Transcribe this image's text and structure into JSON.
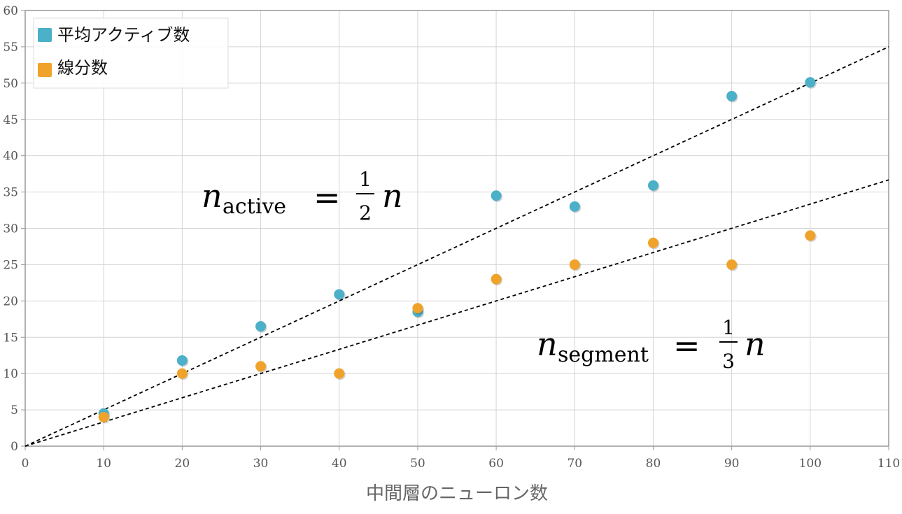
{
  "chart_data": {
    "type": "scatter",
    "xlabel": "中間層のニューロン数",
    "ylabel": "",
    "xlim": [
      0,
      110
    ],
    "ylim": [
      0,
      60
    ],
    "x_ticks": [
      0,
      10,
      20,
      30,
      40,
      50,
      60,
      70,
      80,
      90,
      100,
      110
    ],
    "y_ticks": [
      0,
      5,
      10,
      15,
      20,
      25,
      30,
      35,
      40,
      45,
      50,
      55,
      60
    ],
    "grid": true,
    "legend_position": "top-left",
    "series": [
      {
        "name": "平均アクティブ数",
        "color": "#4bb0c8",
        "x": [
          10,
          20,
          30,
          40,
          50,
          60,
          70,
          80,
          90,
          100
        ],
        "y": [
          4.5,
          11.8,
          16.5,
          20.9,
          18.5,
          34.5,
          33.0,
          35.9,
          48.2,
          50.1
        ]
      },
      {
        "name": "線分数",
        "color": "#f0a32a",
        "x": [
          10,
          20,
          30,
          40,
          50,
          60,
          70,
          80,
          90,
          100
        ],
        "y": [
          4.0,
          10.0,
          11.0,
          10.0,
          19.0,
          23.0,
          25.0,
          28.0,
          25.0,
          29.0
        ]
      }
    ],
    "reference_lines": [
      {
        "slope": 0.5,
        "style": "dashed",
        "label_var": "n",
        "label_sub": "active",
        "label_num": "1",
        "label_den": "2",
        "label_var2": "n"
      },
      {
        "slope": 0.3333333,
        "style": "dashed",
        "label_var": "n",
        "label_sub": "segment",
        "label_num": "1",
        "label_den": "3",
        "label_var2": "n"
      }
    ]
  }
}
